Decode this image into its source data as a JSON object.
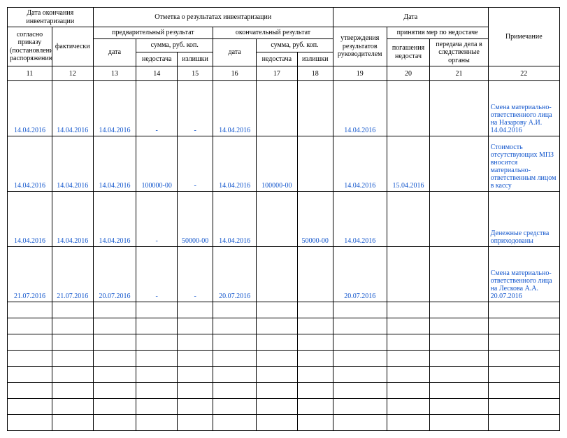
{
  "head": {
    "g1": "Дата окончания инвентаризации",
    "g2": "Отметка о результатах инвентаризации",
    "g3": "Дата",
    "c11": "согласно приказу (постановлению, распоряжению)",
    "c12": "фактически",
    "prelim": "предварительный результат",
    "final": "окончательный результат",
    "sum1": "сумма, руб. коп.",
    "sum2": "сумма, руб. коп.",
    "c13": "дата",
    "c14": "недостача",
    "c15": "излишки",
    "c16": "дата",
    "c17": "недостача",
    "c18": "излишки",
    "c19": "утверждения результатов руководителем",
    "meas": "принятия мер по недостаче",
    "c20": "погашения недостач",
    "c21": "передача дела в следственные органы",
    "c22": "Примечание"
  },
  "nums": {
    "n11": "11",
    "n12": "12",
    "n13": "13",
    "n14": "14",
    "n15": "15",
    "n16": "16",
    "n17": "17",
    "n18": "18",
    "n19": "19",
    "n20": "20",
    "n21": "21",
    "n22": "22"
  },
  "r": [
    {
      "c11": "14.04.2016",
      "c12": "14.04.2016",
      "c13": "14.04.2016",
      "c14": "-",
      "c15": "-",
      "c16": "14.04.2016",
      "c17": "",
      "c18": "",
      "c19": "14.04.2016",
      "c20": "",
      "c21": "",
      "c22": "Смена материально-ответственного лица на Назарову А.И. 14.04.2016"
    },
    {
      "c11": "14.04.2016",
      "c12": "14.04.2016",
      "c13": "14.04.2016",
      "c14": "100000-00",
      "c15": "-",
      "c16": "14.04.2016",
      "c17": "100000-00",
      "c18": "",
      "c19": "14.04.2016",
      "c20": "15.04.2016",
      "c21": "",
      "c22": "Стоимость отсутствующих МПЗ вносится материально-ответственным лицом в кассу"
    },
    {
      "c11": "14.04.2016",
      "c12": "14.04.2016",
      "c13": "14.04.2016",
      "c14": "-",
      "c15": "50000-00",
      "c16": "14.04.2016",
      "c17": "",
      "c18": "50000-00",
      "c19": "14.04.2016",
      "c20": "",
      "c21": "",
      "c22": "Денежные средства оприходованы"
    },
    {
      "c11": "21.07.2016",
      "c12": "21.07.2016",
      "c13": "20.07.2016",
      "c14": "-",
      "c15": "-",
      "c16": "20.07.2016",
      "c17": "",
      "c18": "",
      "c19": "20.07.2016",
      "c20": "",
      "c21": "",
      "c22": "Смена материально-ответственного лица на Лескова А.А. 20.07.2016"
    }
  ],
  "emptyRows": 8,
  "style": {
    "linkColor": "#1155cc",
    "borderColor": "#000000",
    "fontSize": 10,
    "fontFamily": "Times New Roman"
  }
}
